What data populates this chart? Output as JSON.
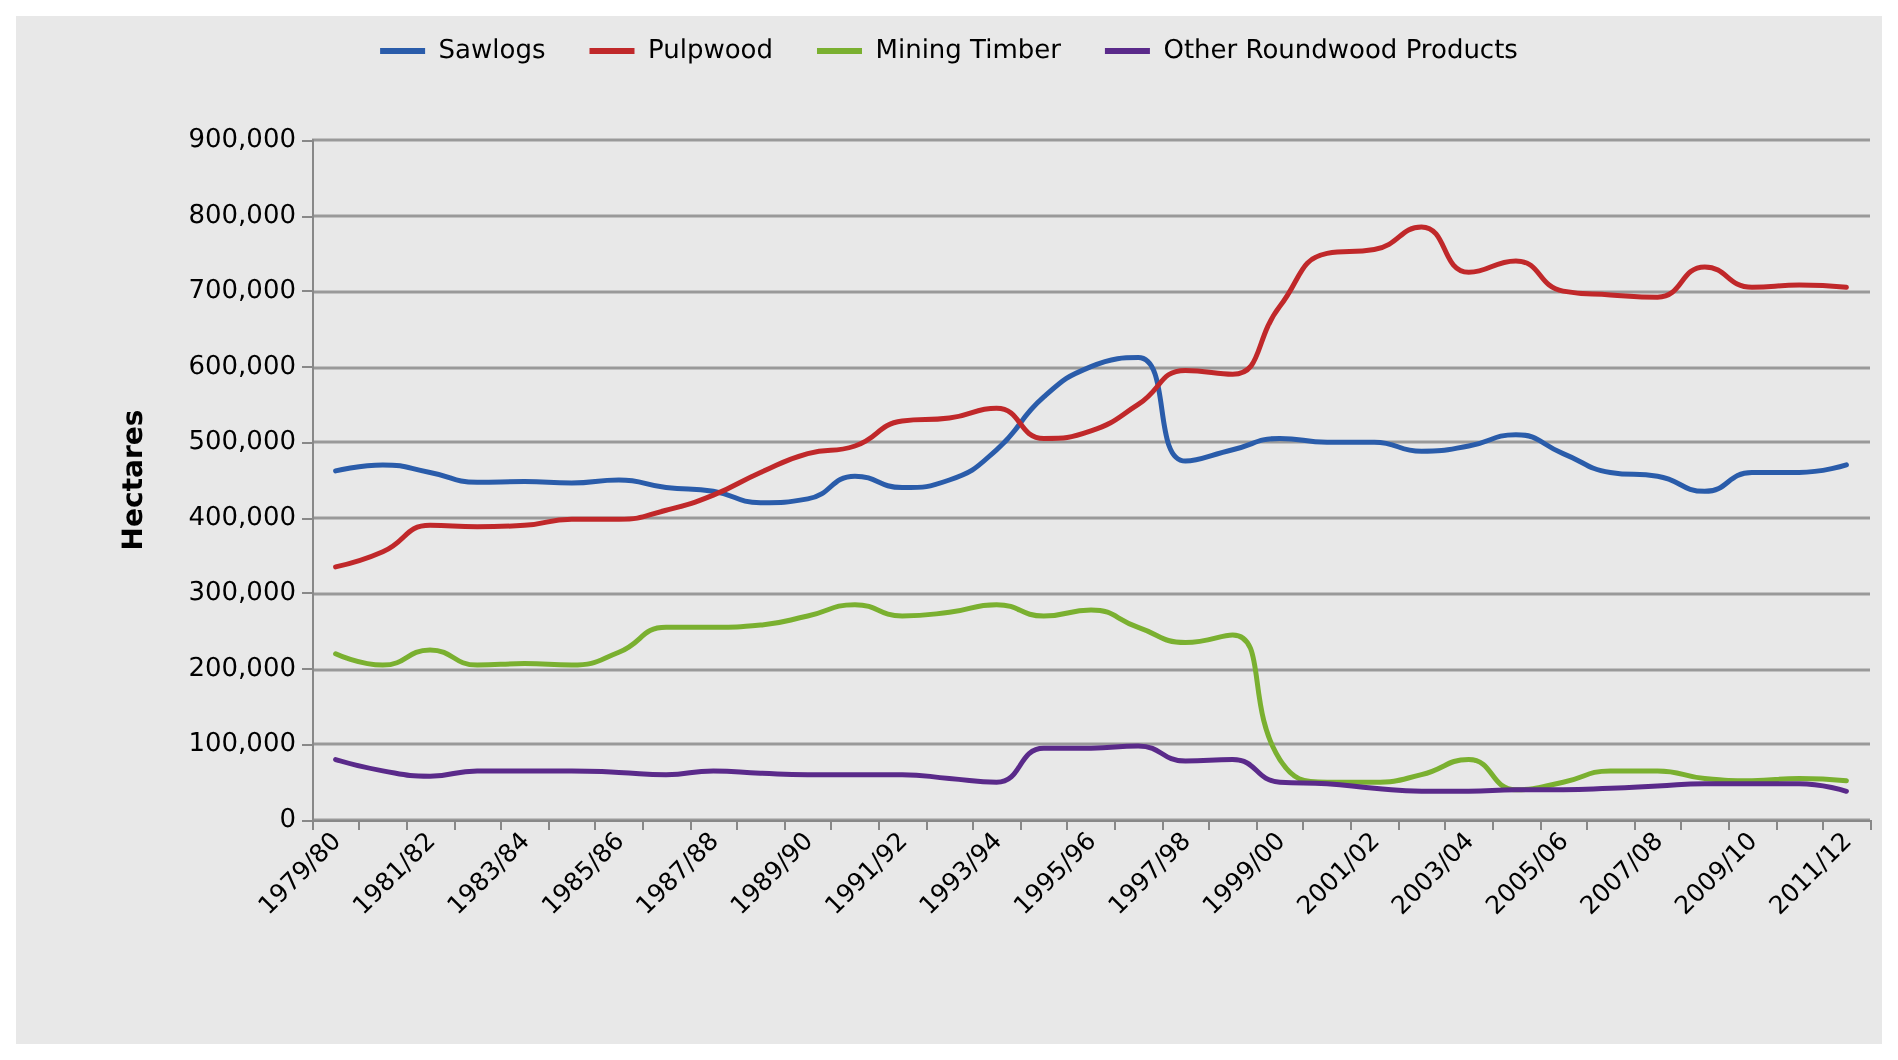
{
  "chart_data": {
    "type": "line",
    "ylabel": "Hectares",
    "categories": [
      "1979/80",
      null,
      "1981/82",
      null,
      "1983/84",
      null,
      "1985/86",
      null,
      "1987/88",
      null,
      "1989/90",
      null,
      "1991/92",
      null,
      "1993/94",
      null,
      "1995/96",
      null,
      "1997/98",
      null,
      "1999/00",
      null,
      "2001/02",
      null,
      "2003/04",
      null,
      "2005/06",
      null,
      "2007/08",
      null,
      "2009/10",
      null,
      "2011/12"
    ],
    "series": [
      {
        "name": "Sawlogs",
        "color": "#2a5caa",
        "values": [
          462000,
          470000,
          460000,
          447000,
          448000,
          446000,
          450000,
          440000,
          435000,
          420000,
          425000,
          455000,
          440000,
          450000,
          490000,
          560000,
          600000,
          612000,
          475000,
          490000,
          505000,
          500000,
          500000,
          488000,
          495000,
          510000,
          485000,
          460000,
          455000,
          435000,
          460000,
          460000,
          470000
        ]
      },
      {
        "name": "Pulpwood",
        "color": "#c0282a",
        "values": [
          335000,
          355000,
          390000,
          388000,
          390000,
          398000,
          398000,
          410000,
          430000,
          460000,
          485000,
          495000,
          528000,
          532000,
          545000,
          505000,
          515000,
          550000,
          595000,
          590000,
          680000,
          750000,
          755000,
          785000,
          725000,
          740000,
          700000,
          695000,
          692000,
          732000,
          705000,
          708000,
          705000
        ]
      },
      {
        "name": "Mining Timber",
        "color": "#7ab030",
        "values": [
          220000,
          205000,
          225000,
          205000,
          207000,
          205000,
          222000,
          255000,
          255000,
          258000,
          270000,
          285000,
          270000,
          275000,
          285000,
          270000,
          278000,
          255000,
          235000,
          245000,
          80000,
          50000,
          50000,
          60000,
          80000,
          40000,
          50000,
          65000,
          65000,
          55000,
          52000,
          55000,
          52000
        ]
      },
      {
        "name": "Other Roundwood Products",
        "color": "#5a2a8a",
        "values": [
          80000,
          65000,
          58000,
          65000,
          65000,
          65000,
          63000,
          60000,
          65000,
          62000,
          60000,
          60000,
          60000,
          55000,
          50000,
          95000,
          95000,
          98000,
          78000,
          80000,
          50000,
          48000,
          42000,
          38000,
          38000,
          40000,
          40000,
          42000,
          45000,
          48000,
          48000,
          48000,
          38000
        ]
      }
    ],
    "ylim": [
      0,
      900000
    ],
    "yticks": [
      {
        "value": 0,
        "label": "0"
      },
      {
        "value": 100000,
        "label": "100,000"
      },
      {
        "value": 200000,
        "label": "200,000"
      },
      {
        "value": 300000,
        "label": "300,000"
      },
      {
        "value": 400000,
        "label": "400,000"
      },
      {
        "value": 500000,
        "label": "500,000"
      },
      {
        "value": 600000,
        "label": "600,000"
      },
      {
        "value": 700000,
        "label": "700,000"
      },
      {
        "value": 800000,
        "label": "800,000"
      },
      {
        "value": 900000,
        "label": "900,000"
      }
    ],
    "grid": "y",
    "legend": "top",
    "marker": "none",
    "line_style": "solid"
  }
}
